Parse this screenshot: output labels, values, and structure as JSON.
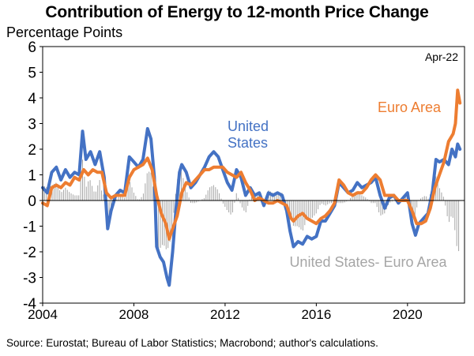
{
  "chart_data": {
    "type": "line",
    "title": "Contribution of Energy to 12-month Price Change",
    "ylabel": "Percentage Points",
    "xlabel": "",
    "ylim": [
      -4,
      6
    ],
    "xlim": [
      2004.0,
      2022.5
    ],
    "yticks": [
      6,
      5,
      4,
      3,
      2,
      1,
      0,
      -1,
      -2,
      -3,
      -4
    ],
    "xticks": [
      2004,
      2008,
      2012,
      2016,
      2020
    ],
    "date_label": "Apr-22",
    "grid": false,
    "series": [
      {
        "name": "United States",
        "label_lines": [
          "United",
          "States"
        ],
        "color": "#4472C4",
        "points": [
          [
            2004.0,
            0.5
          ],
          [
            2004.2,
            0.3
          ],
          [
            2004.4,
            1.1
          ],
          [
            2004.6,
            1.3
          ],
          [
            2004.8,
            0.8
          ],
          [
            2005.0,
            1.2
          ],
          [
            2005.2,
            0.9
          ],
          [
            2005.4,
            1.1
          ],
          [
            2005.6,
            1.0
          ],
          [
            2005.75,
            2.7
          ],
          [
            2005.9,
            1.6
          ],
          [
            2006.1,
            1.9
          ],
          [
            2006.3,
            1.4
          ],
          [
            2006.5,
            1.9
          ],
          [
            2006.7,
            0.9
          ],
          [
            2006.85,
            -1.1
          ],
          [
            2007.0,
            -0.4
          ],
          [
            2007.2,
            0.2
          ],
          [
            2007.4,
            0.4
          ],
          [
            2007.6,
            0.3
          ],
          [
            2007.8,
            1.7
          ],
          [
            2008.0,
            1.5
          ],
          [
            2008.2,
            1.3
          ],
          [
            2008.4,
            1.6
          ],
          [
            2008.6,
            2.8
          ],
          [
            2008.75,
            2.4
          ],
          [
            2008.9,
            0.9
          ],
          [
            2009.0,
            -1.8
          ],
          [
            2009.15,
            -2.2
          ],
          [
            2009.3,
            -2.4
          ],
          [
            2009.45,
            -3.0
          ],
          [
            2009.55,
            -3.3
          ],
          [
            2009.7,
            -2.0
          ],
          [
            2009.85,
            -0.3
          ],
          [
            2010.0,
            1.1
          ],
          [
            2010.1,
            1.4
          ],
          [
            2010.3,
            1.1
          ],
          [
            2010.5,
            0.5
          ],
          [
            2010.7,
            0.7
          ],
          [
            2010.9,
            1.0
          ],
          [
            2011.1,
            1.3
          ],
          [
            2011.3,
            1.7
          ],
          [
            2011.5,
            1.9
          ],
          [
            2011.7,
            1.7
          ],
          [
            2011.9,
            1.2
          ],
          [
            2012.1,
            0.7
          ],
          [
            2012.3,
            0.4
          ],
          [
            2012.5,
            1.2
          ],
          [
            2012.7,
            0.9
          ],
          [
            2012.9,
            0.2
          ],
          [
            2013.1,
            0.5
          ],
          [
            2013.3,
            0.2
          ],
          [
            2013.5,
            0.3
          ],
          [
            2013.7,
            -0.2
          ],
          [
            2013.9,
            0.3
          ],
          [
            2014.1,
            0.2
          ],
          [
            2014.3,
            0.3
          ],
          [
            2014.5,
            0.2
          ],
          [
            2014.7,
            -0.4
          ],
          [
            2014.85,
            -1.2
          ],
          [
            2015.0,
            -1.8
          ],
          [
            2015.2,
            -1.6
          ],
          [
            2015.4,
            -1.7
          ],
          [
            2015.6,
            -1.4
          ],
          [
            2015.8,
            -1.5
          ],
          [
            2016.0,
            -1.4
          ],
          [
            2016.2,
            -0.8
          ],
          [
            2016.4,
            -0.8
          ],
          [
            2016.6,
            -0.5
          ],
          [
            2016.8,
            -0.2
          ],
          [
            2017.0,
            0.7
          ],
          [
            2017.2,
            0.5
          ],
          [
            2017.4,
            0.3
          ],
          [
            2017.6,
            0.4
          ],
          [
            2017.8,
            0.7
          ],
          [
            2018.0,
            0.5
          ],
          [
            2018.2,
            0.6
          ],
          [
            2018.4,
            0.7
          ],
          [
            2018.6,
            0.9
          ],
          [
            2018.8,
            0.2
          ],
          [
            2019.0,
            -0.3
          ],
          [
            2019.2,
            0.1
          ],
          [
            2019.4,
            0.2
          ],
          [
            2019.6,
            -0.1
          ],
          [
            2019.8,
            0.1
          ],
          [
            2020.0,
            0.3
          ],
          [
            2020.2,
            -0.9
          ],
          [
            2020.35,
            -1.35
          ],
          [
            2020.5,
            -0.9
          ],
          [
            2020.7,
            -0.7
          ],
          [
            2020.9,
            -0.5
          ],
          [
            2021.1,
            0.4
          ],
          [
            2021.25,
            1.6
          ],
          [
            2021.4,
            1.5
          ],
          [
            2021.6,
            1.6
          ],
          [
            2021.8,
            1.4
          ],
          [
            2021.95,
            2.0
          ],
          [
            2022.1,
            1.7
          ],
          [
            2022.2,
            2.2
          ],
          [
            2022.3,
            2.0
          ]
        ]
      },
      {
        "name": "Euro Area",
        "label_lines": [
          "Euro Area"
        ],
        "color": "#ED7D31",
        "points": [
          [
            2004.0,
            -0.1
          ],
          [
            2004.2,
            -0.2
          ],
          [
            2004.4,
            0.5
          ],
          [
            2004.6,
            0.6
          ],
          [
            2004.8,
            0.5
          ],
          [
            2005.0,
            0.7
          ],
          [
            2005.2,
            0.6
          ],
          [
            2005.4,
            0.9
          ],
          [
            2005.6,
            0.8
          ],
          [
            2005.8,
            1.2
          ],
          [
            2006.0,
            1.0
          ],
          [
            2006.2,
            1.2
          ],
          [
            2006.4,
            1.1
          ],
          [
            2006.6,
            1.1
          ],
          [
            2006.8,
            0.3
          ],
          [
            2007.0,
            0.1
          ],
          [
            2007.2,
            0.2
          ],
          [
            2007.4,
            0.2
          ],
          [
            2007.6,
            0.2
          ],
          [
            2007.8,
            0.9
          ],
          [
            2008.0,
            1.2
          ],
          [
            2008.2,
            1.3
          ],
          [
            2008.4,
            1.4
          ],
          [
            2008.6,
            1.65
          ],
          [
            2008.8,
            1.2
          ],
          [
            2009.0,
            0.2
          ],
          [
            2009.2,
            -0.5
          ],
          [
            2009.4,
            -0.9
          ],
          [
            2009.55,
            -1.5
          ],
          [
            2009.7,
            -1.1
          ],
          [
            2009.9,
            -0.6
          ],
          [
            2010.1,
            0.3
          ],
          [
            2010.3,
            0.7
          ],
          [
            2010.5,
            0.6
          ],
          [
            2010.7,
            0.8
          ],
          [
            2010.9,
            1.0
          ],
          [
            2011.1,
            1.2
          ],
          [
            2011.3,
            1.2
          ],
          [
            2011.5,
            1.3
          ],
          [
            2011.7,
            1.3
          ],
          [
            2011.9,
            1.3
          ],
          [
            2012.1,
            1.1
          ],
          [
            2012.3,
            1.0
          ],
          [
            2012.5,
            0.9
          ],
          [
            2012.7,
            1.1
          ],
          [
            2012.9,
            0.7
          ],
          [
            2013.1,
            0.4
          ],
          [
            2013.3,
            0.0
          ],
          [
            2013.5,
            0.1
          ],
          [
            2013.7,
            0.0
          ],
          [
            2013.9,
            -0.1
          ],
          [
            2014.1,
            -0.1
          ],
          [
            2014.3,
            0.0
          ],
          [
            2014.5,
            -0.1
          ],
          [
            2014.7,
            -0.2
          ],
          [
            2014.9,
            -0.7
          ],
          [
            2015.0,
            -0.8
          ],
          [
            2015.2,
            -0.6
          ],
          [
            2015.4,
            -0.5
          ],
          [
            2015.6,
            -0.7
          ],
          [
            2015.8,
            -0.8
          ],
          [
            2016.0,
            -0.9
          ],
          [
            2016.2,
            -0.7
          ],
          [
            2016.4,
            -0.6
          ],
          [
            2016.6,
            -0.4
          ],
          [
            2016.8,
            -0.1
          ],
          [
            2017.0,
            0.8
          ],
          [
            2017.2,
            0.6
          ],
          [
            2017.4,
            0.3
          ],
          [
            2017.6,
            0.2
          ],
          [
            2017.8,
            0.3
          ],
          [
            2018.0,
            0.3
          ],
          [
            2018.2,
            0.5
          ],
          [
            2018.4,
            0.8
          ],
          [
            2018.6,
            1.0
          ],
          [
            2018.8,
            0.8
          ],
          [
            2019.0,
            0.2
          ],
          [
            2019.2,
            0.2
          ],
          [
            2019.4,
            0.2
          ],
          [
            2019.6,
            0.0
          ],
          [
            2019.8,
            0.0
          ],
          [
            2020.0,
            0.0
          ],
          [
            2020.2,
            -0.4
          ],
          [
            2020.4,
            -0.9
          ],
          [
            2020.6,
            -0.9
          ],
          [
            2020.8,
            -0.8
          ],
          [
            2021.0,
            -0.3
          ],
          [
            2021.2,
            0.5
          ],
          [
            2021.4,
            1.0
          ],
          [
            2021.6,
            1.5
          ],
          [
            2021.8,
            2.3
          ],
          [
            2022.0,
            2.6
          ],
          [
            2022.1,
            3.0
          ],
          [
            2022.2,
            4.3
          ],
          [
            2022.3,
            3.8
          ]
        ]
      }
    ],
    "difference_series": {
      "name": "United States- Euro Area",
      "color": "#A6A6A6",
      "step": 0.0833,
      "x_start": 2004.0
    }
  },
  "source_note": "Source: Eurostat; Bureau of Labor Statistics; Macrobond; author's calculations."
}
